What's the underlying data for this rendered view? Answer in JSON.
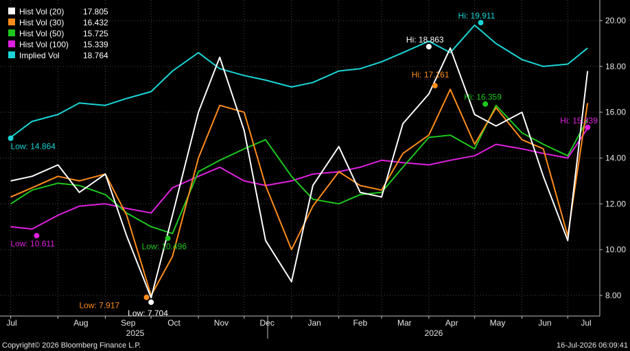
{
  "chart_data": {
    "type": "line",
    "title": "",
    "xlabel": "",
    "ylabel": "",
    "ylim": [
      7.1,
      20.9
    ],
    "y_ticks": [
      "8.00",
      "10.00",
      "12.00",
      "14.00",
      "16.00",
      "18.00",
      "20.00"
    ],
    "x_ticks": [
      "Jul",
      "Aug",
      "Sep",
      "Oct",
      "Nov",
      "Dec",
      "Jan",
      "Feb",
      "Mar",
      "Apr",
      "May",
      "Jun",
      "Jul"
    ],
    "year_labels": [
      "2025",
      "2026"
    ],
    "grid": true,
    "legend_position": "top-left",
    "x": [
      "2025-07-01",
      "2025-07-15",
      "2025-08-01",
      "2025-08-15",
      "2025-09-01",
      "2025-09-15",
      "2025-10-01",
      "2025-10-15",
      "2025-11-01",
      "2025-11-15",
      "2025-12-01",
      "2025-12-15",
      "2026-01-01",
      "2026-01-15",
      "2026-02-01",
      "2026-02-15",
      "2026-03-01",
      "2026-03-15",
      "2026-04-01",
      "2026-04-15",
      "2026-05-01",
      "2026-05-15",
      "2026-06-01",
      "2026-06-15",
      "2026-07-01",
      "2026-07-14"
    ],
    "series": [
      {
        "name": "Hist Vol (20)",
        "legend_value": "17.805",
        "color": "#ffffff",
        "values": [
          13.0,
          13.2,
          13.7,
          12.5,
          13.3,
          10.6,
          7.9,
          11.5,
          16.0,
          18.4,
          15.2,
          10.4,
          8.6,
          12.8,
          14.5,
          12.5,
          12.3,
          15.5,
          16.8,
          18.8,
          15.9,
          15.4,
          16.0,
          13.2,
          10.4,
          17.8
        ]
      },
      {
        "name": "Hist Vol (30)",
        "legend_value": "16.432",
        "color": "#ff8c1a",
        "values": [
          12.3,
          12.7,
          13.2,
          13.0,
          13.3,
          11.5,
          8.0,
          9.7,
          14.0,
          16.3,
          16.0,
          12.8,
          10.0,
          11.9,
          13.4,
          12.8,
          12.6,
          14.2,
          15.0,
          17.0,
          14.6,
          16.2,
          14.8,
          14.4,
          10.6,
          16.4
        ]
      },
      {
        "name": "Hist Vol (50)",
        "legend_value": "15.725",
        "color": "#1ec81e",
        "values": [
          12.0,
          12.6,
          12.9,
          12.8,
          12.4,
          11.6,
          11.0,
          10.7,
          13.4,
          13.9,
          14.4,
          14.8,
          13.2,
          12.2,
          12.0,
          12.4,
          12.5,
          13.6,
          14.9,
          15.0,
          14.4,
          16.3,
          15.1,
          14.6,
          14.1,
          15.7
        ]
      },
      {
        "name": "Hist Vol (100)",
        "legend_value": "15.339",
        "color": "#e020e0",
        "values": [
          11.0,
          10.9,
          11.5,
          11.9,
          12.0,
          11.8,
          11.6,
          12.7,
          13.2,
          13.6,
          13.0,
          12.8,
          13.0,
          13.3,
          13.4,
          13.6,
          13.9,
          13.8,
          13.7,
          13.9,
          14.1,
          14.6,
          14.4,
          14.2,
          14.0,
          15.3
        ]
      },
      {
        "name": "Implied Vol",
        "legend_value": "18.764",
        "color": "#1ad5d5",
        "values": [
          14.9,
          15.6,
          15.9,
          16.4,
          16.3,
          16.6,
          16.9,
          17.8,
          18.6,
          17.9,
          17.6,
          17.4,
          17.1,
          17.3,
          17.8,
          17.9,
          18.2,
          18.6,
          19.1,
          18.6,
          19.8,
          19.0,
          18.3,
          18.0,
          18.1,
          18.8
        ]
      }
    ],
    "annotations": [
      {
        "text": "Low: 14.864",
        "color": "#1ad5d5",
        "x": "2025-07-01",
        "y": 14.864
      },
      {
        "text": "Low: 10.611",
        "color": "#e020e0",
        "x": "2025-07-18",
        "y": 10.611
      },
      {
        "text": "Low: 7.917",
        "color": "#ff8c1a",
        "x": "2025-09-28",
        "y": 7.917
      },
      {
        "text": "Low: 7.704",
        "color": "#ffffff",
        "x": "2025-10-01",
        "y": 7.704
      },
      {
        "text": "Low: 10.496",
        "color": "#1ec81e",
        "x": "2025-10-12",
        "y": 10.496
      },
      {
        "text": "Hi: 18.863",
        "color": "#ffffff",
        "x": "2026-04-01",
        "y": 18.863
      },
      {
        "text": "Hi: 17.161",
        "color": "#ff8c1a",
        "x": "2026-04-05",
        "y": 17.161
      },
      {
        "text": "Hi: 16.359",
        "color": "#1ec81e",
        "x": "2026-05-08",
        "y": 16.359
      },
      {
        "text": "Hi: 19.911",
        "color": "#1ad5d5",
        "x": "2026-05-05",
        "y": 19.911
      },
      {
        "text": "Hi: 15.339",
        "color": "#e020e0",
        "x": "2026-07-14",
        "y": 15.339
      }
    ]
  },
  "footer": {
    "copyright": "Copyright© 2026 Bloomberg Finance L.P.",
    "timestamp": "16-Jul-2026 06:09:41"
  }
}
